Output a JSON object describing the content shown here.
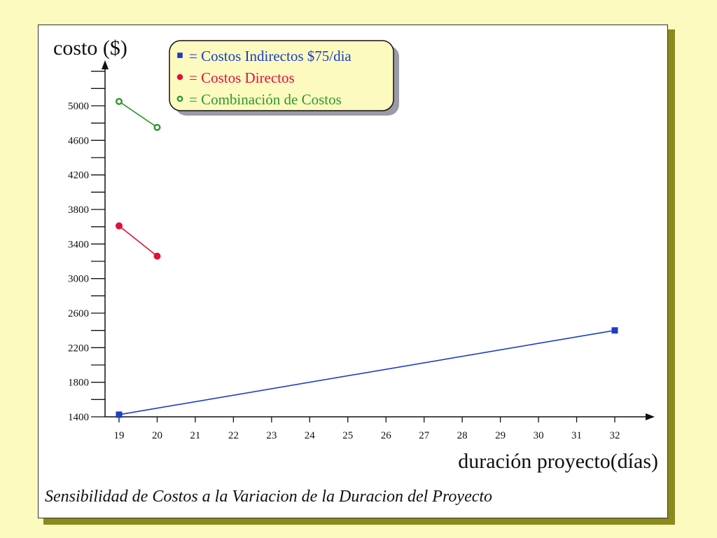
{
  "colors": {
    "background": "#fdfac0",
    "indirect": "#1a3fc4",
    "direct": "#e0103a",
    "combined": "#2a9a2a",
    "legend_bg": "#fdfac0",
    "panel_shadow": "#8a8a1f"
  },
  "chart_data": {
    "type": "line",
    "title": "",
    "xlabel": "duración proyecto(días)",
    "ylabel": "costo ($)",
    "caption": "Sensibilidad de Costos a la Variacion de la Duracion del Proyecto",
    "xlim": [
      19,
      32
    ],
    "ylim": [
      1400,
      5000
    ],
    "x_ticks": [
      19,
      20,
      21,
      22,
      23,
      24,
      25,
      26,
      27,
      28,
      29,
      30,
      31,
      32
    ],
    "y_ticks": [
      1400,
      1800,
      2200,
      2600,
      3000,
      3400,
      3800,
      4200,
      4600,
      5000
    ],
    "legend_position": "top-center",
    "series": [
      {
        "name": "= Costos Indirectos $75/dia",
        "marker": "square",
        "color_key": "indirect",
        "points": [
          {
            "x": 19,
            "y": 1425
          },
          {
            "x": 32,
            "y": 2400
          }
        ]
      },
      {
        "name": "= Costos Directos",
        "marker": "filled-circle",
        "color_key": "direct",
        "points": [
          {
            "x": 19,
            "y": 3610
          },
          {
            "x": 20,
            "y": 3260
          }
        ]
      },
      {
        "name": "= Combinación de Costos",
        "marker": "open-circle",
        "color_key": "combined",
        "points": [
          {
            "x": 19,
            "y": 5050
          },
          {
            "x": 20,
            "y": 4750
          }
        ]
      }
    ]
  }
}
